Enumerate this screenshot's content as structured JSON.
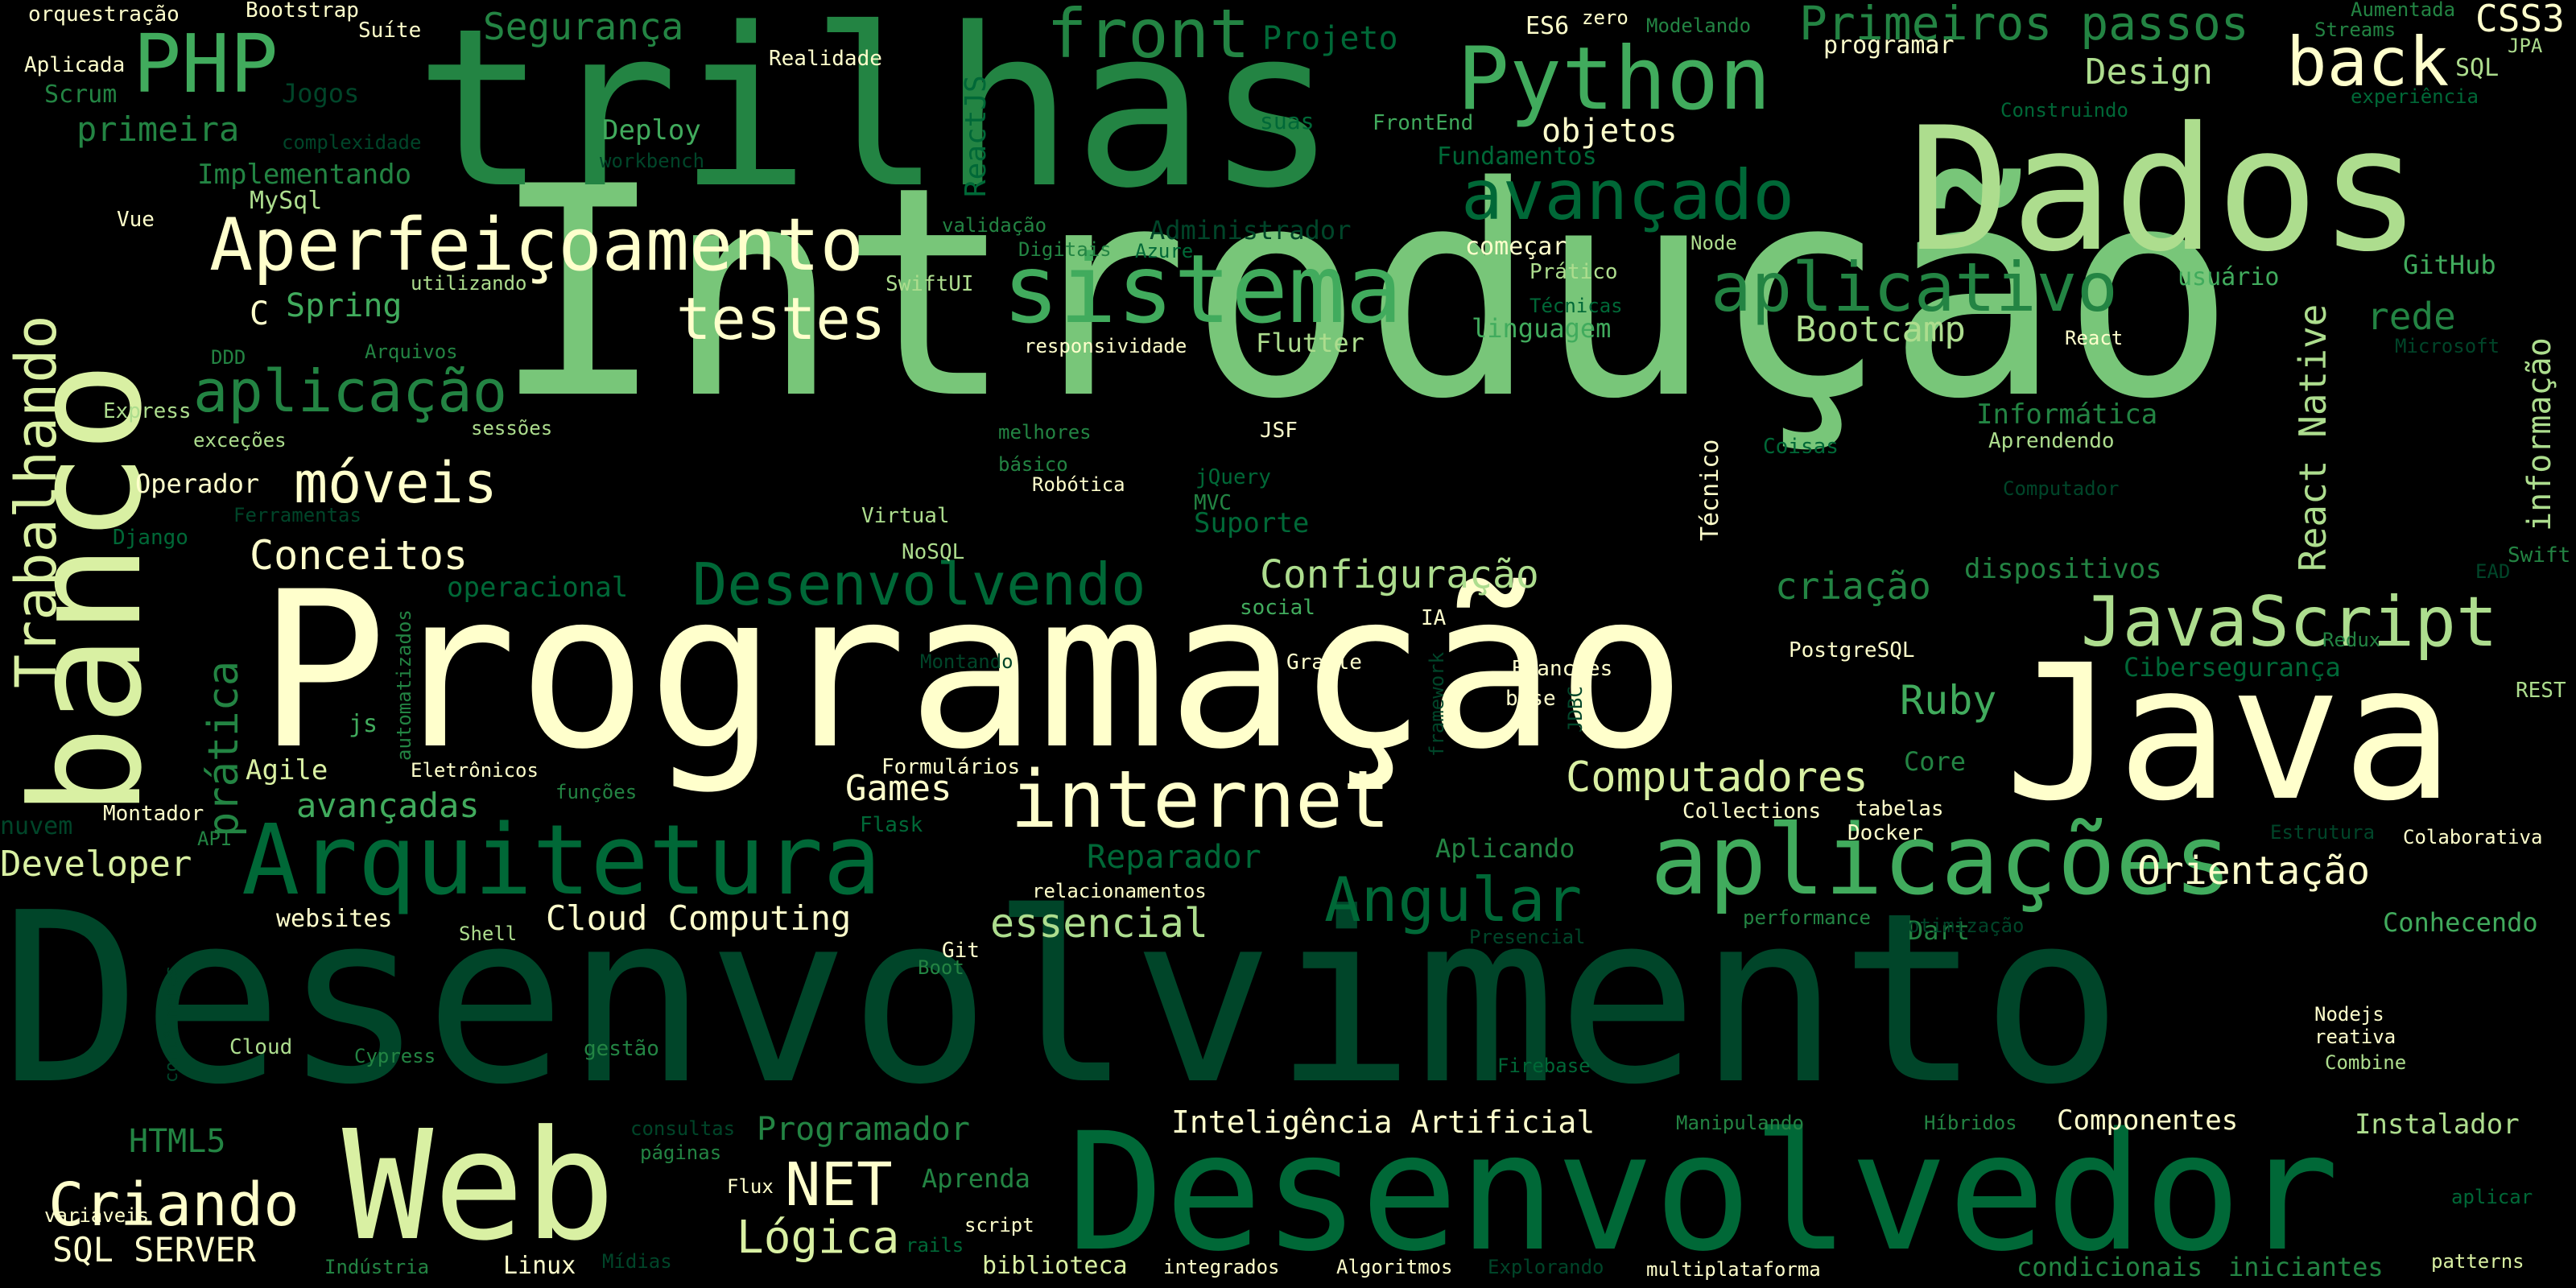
{
  "palette": {
    "background": "#000000",
    "c1": "#FFFFCC",
    "c2": "#D9F0A3",
    "c3": "#ADDD8E",
    "c4": "#78C679",
    "c5": "#41AB5D",
    "c6": "#238443",
    "c7": "#006837",
    "c8": "#004529"
  },
  "words": [
    {
      "text": "Introdução",
      "color": "c4"
    },
    {
      "text": "Desenvolvimento",
      "color": "c8"
    },
    {
      "text": "Programação",
      "color": "c1"
    },
    {
      "text": "trilhas",
      "color": "c6"
    },
    {
      "text": "Dados",
      "color": "c3"
    },
    {
      "text": "Java",
      "color": "c1"
    },
    {
      "text": "Desenvolvedor",
      "color": "c7"
    },
    {
      "text": "banco",
      "color": "c2"
    },
    {
      "text": "Web",
      "color": "c2"
    },
    {
      "text": "aplicações",
      "color": "c5"
    },
    {
      "text": "Arquitetura",
      "color": "c7"
    },
    {
      "text": "sistema",
      "color": "c5"
    },
    {
      "text": "internet",
      "color": "c1"
    },
    {
      "text": "Python",
      "color": "c5"
    },
    {
      "text": "Aperfeiçoamento",
      "color": "c1"
    },
    {
      "text": "JavaScript",
      "color": "c3"
    },
    {
      "text": "PHP",
      "color": "c5"
    },
    {
      "text": "front",
      "color": "c6"
    },
    {
      "text": "aplicativo",
      "color": "c6"
    },
    {
      "text": "avançado",
      "color": "c7"
    },
    {
      "text": "back",
      "color": "c1"
    },
    {
      "text": "Primeiros passos",
      "color": "c6"
    },
    {
      "text": "Trabalhando",
      "color": "c2"
    },
    {
      "text": "Desenvolvendo",
      "color": "c7"
    },
    {
      "text": "Angular",
      "color": "c7"
    },
    {
      "text": "aplicação",
      "color": "c6"
    },
    {
      "text": "testes",
      "color": "c1"
    },
    {
      "text": "móveis",
      "color": "c1"
    },
    {
      "text": "Criando",
      "color": "c1"
    },
    {
      "text": "NET",
      "color": "c1"
    },
    {
      "text": "Lógica",
      "color": "c2"
    },
    {
      "text": "Computadores",
      "color": "c2"
    },
    {
      "text": "React Native",
      "color": "c3"
    },
    {
      "text": "prática",
      "color": "c6"
    },
    {
      "text": "Conceitos",
      "color": "c1"
    },
    {
      "text": "Segurança",
      "color": "c6"
    },
    {
      "text": "Configuração",
      "color": "c3"
    },
    {
      "text": "Orientação",
      "color": "c1"
    },
    {
      "text": "Ruby",
      "color": "c5"
    },
    {
      "text": "Games",
      "color": "c1"
    },
    {
      "text": "essencial",
      "color": "c3"
    },
    {
      "text": "Bootcamp",
      "color": "c3"
    },
    {
      "text": "criação",
      "color": "c6"
    },
    {
      "text": "Design",
      "color": "c3"
    },
    {
      "text": "CSS3",
      "color": "c1"
    },
    {
      "text": "Reparador",
      "color": "c7"
    },
    {
      "text": "informação",
      "color": "c3"
    },
    {
      "text": "Cloud Computing",
      "color": "c1"
    },
    {
      "text": "Inteligência Artificial",
      "color": "c1"
    },
    {
      "text": "avançadas",
      "color": "c5"
    },
    {
      "text": "Developer",
      "color": "c2"
    },
    {
      "text": "Programador",
      "color": "c6"
    },
    {
      "text": "Projeto",
      "color": "c7"
    },
    {
      "text": "rede",
      "color": "c6"
    },
    {
      "text": "ReactJS",
      "color": "c7"
    },
    {
      "text": "Spring",
      "color": "c5"
    },
    {
      "text": "HTML5",
      "color": "c6"
    },
    {
      "text": "SQL SERVER",
      "color": "c1"
    },
    {
      "text": "Componentes",
      "color": "c1"
    },
    {
      "text": "Instalador",
      "color": "c3"
    },
    {
      "text": "Conhecendo",
      "color": "c5"
    },
    {
      "text": "primeira",
      "color": "c6"
    },
    {
      "text": "Implementando",
      "color": "c6"
    },
    {
      "text": "Operador",
      "color": "c1"
    },
    {
      "text": "objetos",
      "color": "c1"
    },
    {
      "text": "Deploy",
      "color": "c5"
    },
    {
      "text": "Flutter",
      "color": "c3"
    },
    {
      "text": "linguagem",
      "color": "c5"
    },
    {
      "text": "Informática",
      "color": "c6"
    },
    {
      "text": "dispositivos",
      "color": "c6"
    },
    {
      "text": "GitHub",
      "color": "c5"
    },
    {
      "text": "Cibersegurança",
      "color": "c7"
    },
    {
      "text": "Técnico",
      "color": "c1"
    },
    {
      "text": "Agile",
      "color": "c2"
    },
    {
      "text": "Aprenda",
      "color": "c6"
    },
    {
      "text": "operacional",
      "color": "c7"
    },
    {
      "text": "Fundamentos",
      "color": "c7"
    },
    {
      "text": "Administrador",
      "color": "c8"
    },
    {
      "text": "Suporte",
      "color": "c7"
    },
    {
      "text": "Core",
      "color": "c6"
    },
    {
      "text": "Dart",
      "color": "c6"
    },
    {
      "text": "Aplicando",
      "color": "c6"
    },
    {
      "text": "websites",
      "color": "c1"
    },
    {
      "text": "biblioteca",
      "color": "c2"
    },
    {
      "text": "condicionais",
      "color": "c6"
    },
    {
      "text": "iniciantes",
      "color": "c6"
    },
    {
      "text": "MySql",
      "color": "c3"
    },
    {
      "text": "Scrum",
      "color": "c6"
    },
    {
      "text": "Jogos",
      "color": "c8"
    },
    {
      "text": "C",
      "color": "c1"
    },
    {
      "text": "usuário",
      "color": "c5"
    },
    {
      "text": "Linux",
      "color": "c1"
    },
    {
      "text": "ES6",
      "color": "c1"
    },
    {
      "text": "SQL",
      "color": "c3"
    },
    {
      "text": "Vue",
      "color": "c1"
    },
    {
      "text": "programar",
      "color": "c1"
    },
    {
      "text": "começar",
      "color": "c1"
    },
    {
      "text": "Realidade",
      "color": "c1"
    },
    {
      "text": "Aplicada",
      "color": "c1"
    },
    {
      "text": "Bootstrap",
      "color": "c1"
    },
    {
      "text": "orquestração",
      "color": "c1"
    },
    {
      "text": "Suíte",
      "color": "c1"
    },
    {
      "text": "zero",
      "color": "c1"
    },
    {
      "text": "Modelando",
      "color": "c6"
    },
    {
      "text": "Streams",
      "color": "c6"
    },
    {
      "text": "Aumentada",
      "color": "c6"
    },
    {
      "text": "JPA",
      "color": "c3"
    },
    {
      "text": "experiência",
      "color": "c7"
    },
    {
      "text": "Construindo",
      "color": "c7"
    },
    {
      "text": "complexidade",
      "color": "c8"
    },
    {
      "text": "workbench",
      "color": "c8"
    },
    {
      "text": "FrontEnd",
      "color": "c5"
    },
    {
      "text": "suas",
      "color": "c7"
    },
    {
      "text": "validação",
      "color": "c6"
    },
    {
      "text": "Digitais",
      "color": "c6"
    },
    {
      "text": "Azure",
      "color": "c7"
    },
    {
      "text": "utilizando",
      "color": "c3"
    },
    {
      "text": "SwiftUI",
      "color": "c3"
    },
    {
      "text": "Prático",
      "color": "c3"
    },
    {
      "text": "Node",
      "color": "c3"
    },
    {
      "text": "Técnicas",
      "color": "c7"
    },
    {
      "text": "Arquivos",
      "color": "c6"
    },
    {
      "text": "DDD",
      "color": "c6"
    },
    {
      "text": "responsividade",
      "color": "c1"
    },
    {
      "text": "React",
      "color": "c1"
    },
    {
      "text": "Microsoft",
      "color": "c8"
    },
    {
      "text": "Express",
      "color": "c3"
    },
    {
      "text": "sessões",
      "color": "c3"
    },
    {
      "text": "exceções",
      "color": "c3"
    },
    {
      "text": "melhores",
      "color": "c6"
    },
    {
      "text": "JSF",
      "color": "c1"
    },
    {
      "text": "básico",
      "color": "c6"
    },
    {
      "text": "Robótica",
      "color": "c1"
    },
    {
      "text": "jQuery",
      "color": "c7"
    },
    {
      "text": "Coisas",
      "color": "c7"
    },
    {
      "text": "Aprendendo",
      "color": "c3"
    },
    {
      "text": "Computador",
      "color": "c8"
    },
    {
      "text": "Ferramentas",
      "color": "c8"
    },
    {
      "text": "MVC",
      "color": "c6"
    },
    {
      "text": "Virtual",
      "color": "c3"
    },
    {
      "text": "NoSQL",
      "color": "c3"
    },
    {
      "text": "Django",
      "color": "c7"
    },
    {
      "text": "EAD",
      "color": "c8"
    },
    {
      "text": "Swift",
      "color": "c6"
    },
    {
      "text": "Redux",
      "color": "c6"
    },
    {
      "text": "social",
      "color": "c5"
    },
    {
      "text": "IA",
      "color": "c1"
    },
    {
      "text": "Gradle",
      "color": "c1"
    },
    {
      "text": "framework",
      "color": "c8"
    },
    {
      "text": "Branches",
      "color": "c1"
    },
    {
      "text": "base",
      "color": "c1"
    },
    {
      "text": "JDBC",
      "color": "c8"
    },
    {
      "text": "PostgreSQL",
      "color": "c1"
    },
    {
      "text": "REST",
      "color": "c3"
    },
    {
      "text": "Montando",
      "color": "c8"
    },
    {
      "text": "automatizados",
      "color": "c6"
    },
    {
      "text": "js",
      "color": "c5"
    },
    {
      "text": "Eletrônicos",
      "color": "c1"
    },
    {
      "text": "funções",
      "color": "c6"
    },
    {
      "text": "Formulários",
      "color": "c1"
    },
    {
      "text": "Collections",
      "color": "c1"
    },
    {
      "text": "tabelas",
      "color": "c1"
    },
    {
      "text": "Montador",
      "color": "c1"
    },
    {
      "text": "nuvem",
      "color": "c8"
    },
    {
      "text": "API",
      "color": "c6"
    },
    {
      "text": "Flask",
      "color": "c7"
    },
    {
      "text": "Docker",
      "color": "c1"
    },
    {
      "text": "Estrutura",
      "color": "c8"
    },
    {
      "text": "Colaborativa",
      "color": "c1"
    },
    {
      "text": "relacionamentos",
      "color": "c1"
    },
    {
      "text": "Shell",
      "color": "c3"
    },
    {
      "text": "performance",
      "color": "c6"
    },
    {
      "text": "otimização",
      "color": "c8"
    },
    {
      "text": "Presencial",
      "color": "c8"
    },
    {
      "text": "Git",
      "color": "c1"
    },
    {
      "text": "Boot",
      "color": "c6"
    },
    {
      "text": "contêineres",
      "color": "c8"
    },
    {
      "text": "Cloud",
      "color": "c3"
    },
    {
      "text": "Cypress",
      "color": "c6"
    },
    {
      "text": "gestão",
      "color": "c6"
    },
    {
      "text": "Firebase",
      "color": "c7"
    },
    {
      "text": "Nodejs",
      "color": "c1"
    },
    {
      "text": "reativa",
      "color": "c1"
    },
    {
      "text": "Combine",
      "color": "c3"
    },
    {
      "text": "consultas",
      "color": "c8"
    },
    {
      "text": "variáveis",
      "color": "c1"
    },
    {
      "text": "páginas",
      "color": "c6"
    },
    {
      "text": "Flux",
      "color": "c1"
    },
    {
      "text": "rails",
      "color": "c7"
    },
    {
      "text": "script",
      "color": "c1"
    },
    {
      "text": "Manipulando",
      "color": "c6"
    },
    {
      "text": "Híbridos",
      "color": "c6"
    },
    {
      "text": "aplicar",
      "color": "c7"
    },
    {
      "text": "Indústria",
      "color": "c6"
    },
    {
      "text": "Mídias",
      "color": "c8"
    },
    {
      "text": "integrados",
      "color": "c1"
    },
    {
      "text": "Algoritmos",
      "color": "c1"
    },
    {
      "text": "Explorando",
      "color": "c8"
    },
    {
      "text": "multiplataforma",
      "color": "c1"
    },
    {
      "text": "patterns",
      "color": "c2"
    }
  ]
}
